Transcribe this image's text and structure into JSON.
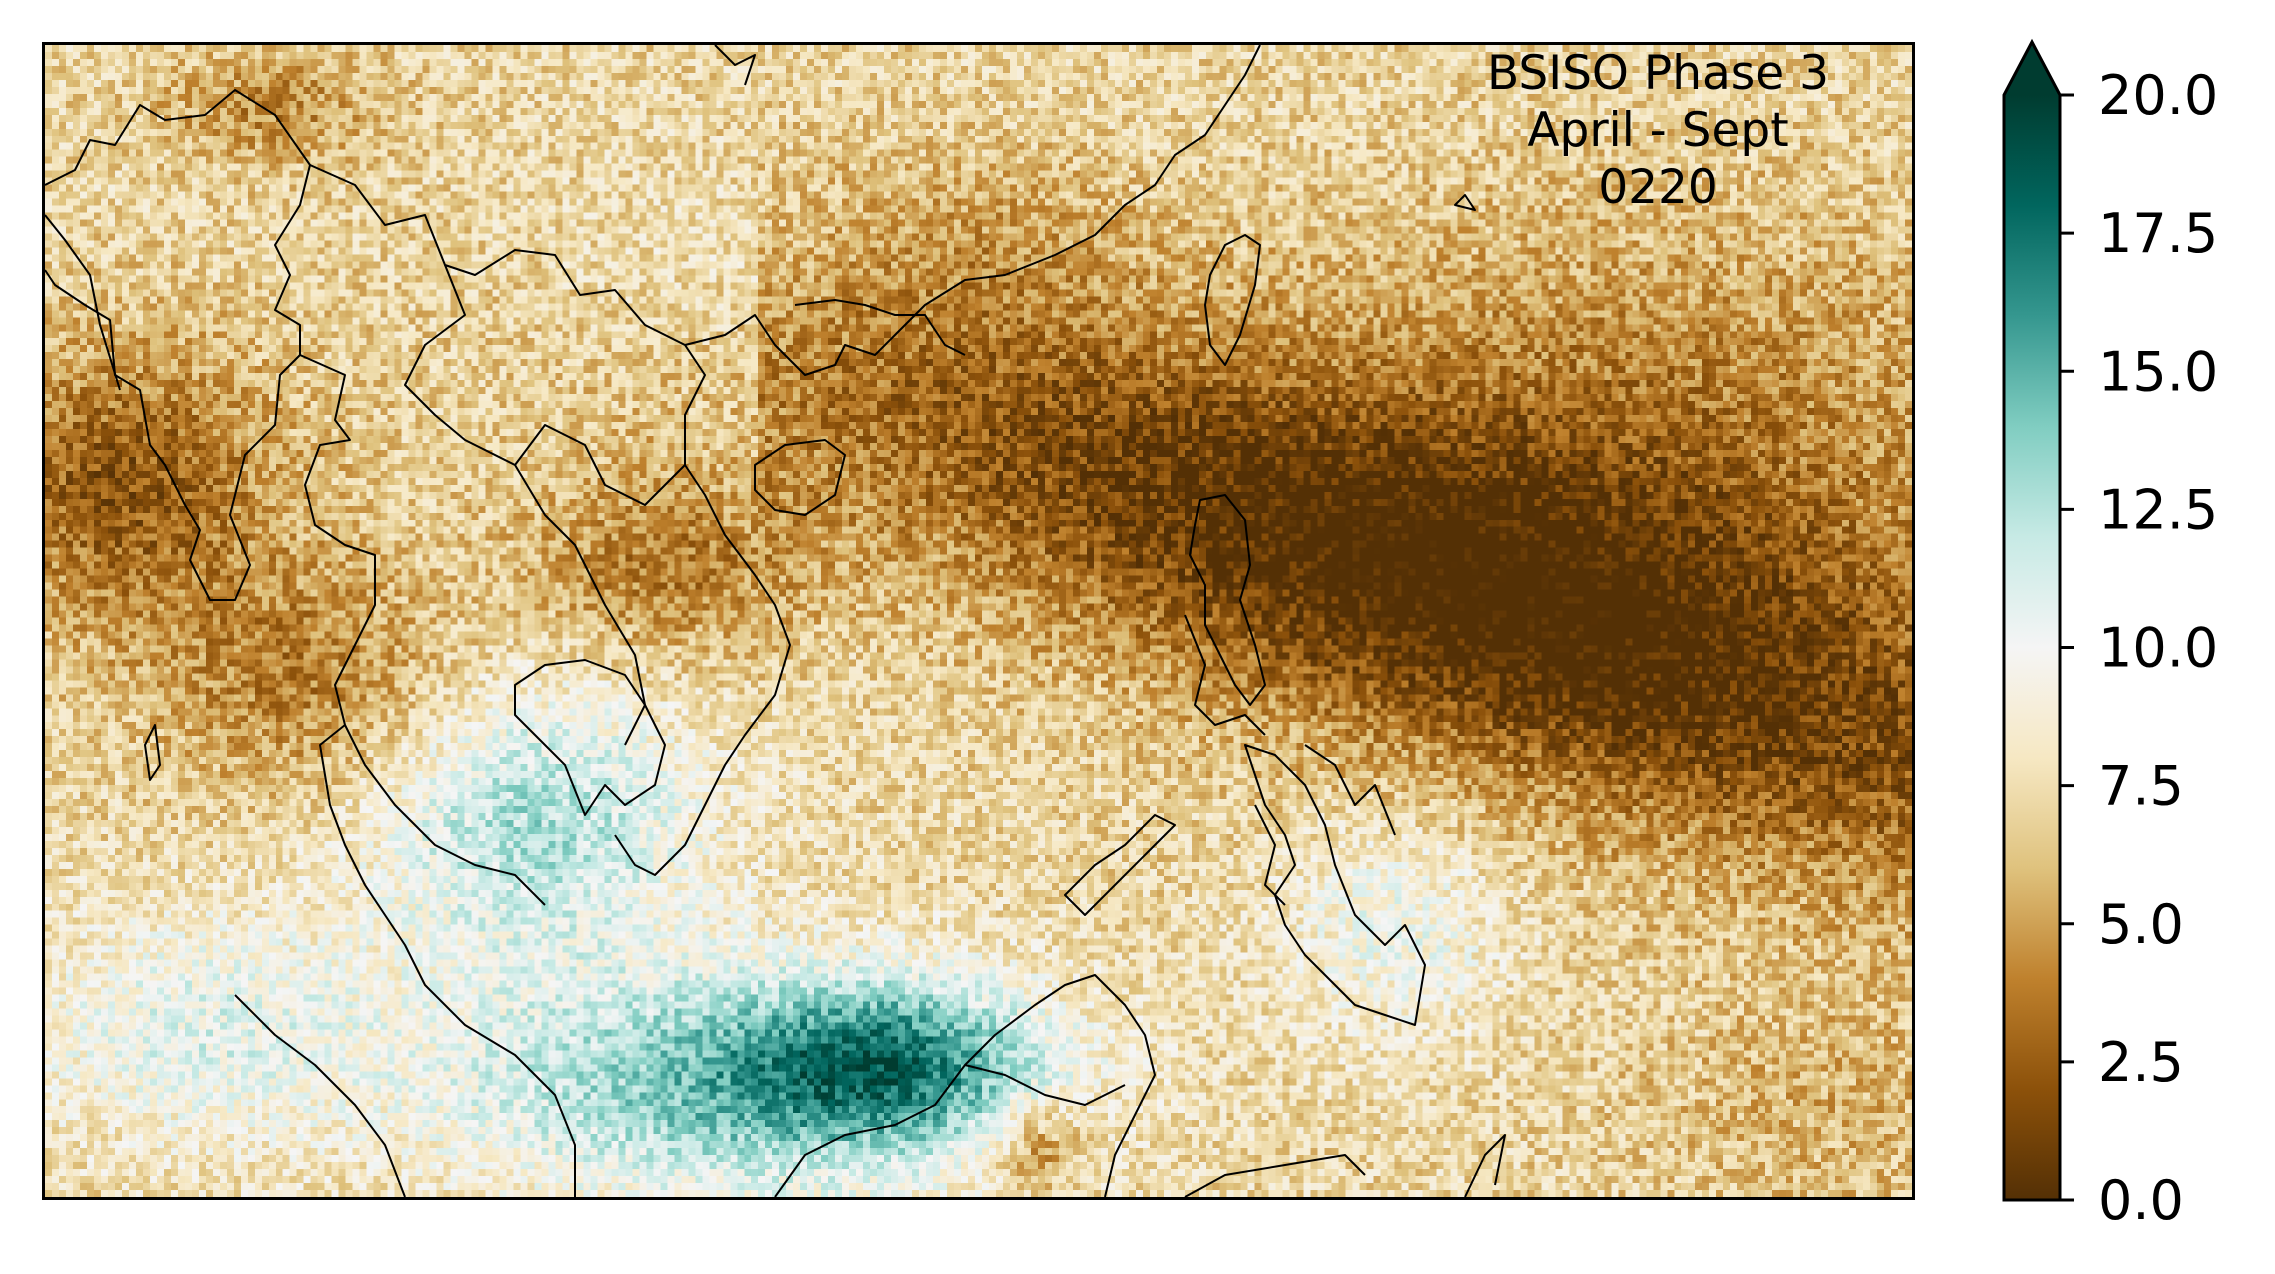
{
  "title": {
    "line1": "BSISO Phase 3",
    "line2": "April - Sept",
    "line3": "0220"
  },
  "colorbar": {
    "min": 0.0,
    "max": 20.0,
    "extend": "max",
    "ticks": [
      "0.0",
      "2.5",
      "5.0",
      "7.5",
      "10.0",
      "12.5",
      "15.0",
      "17.5",
      "20.0"
    ],
    "colormap": "BrBG",
    "colors": [
      "#543005",
      "#8c510a",
      "#bf812d",
      "#dfc27d",
      "#f6e8c3",
      "#f5f5f5",
      "#c7eae5",
      "#80cdc1",
      "#35978f",
      "#01665e",
      "#003c30"
    ]
  },
  "map": {
    "region": "Southeast Asia / Western Pacific",
    "features": [
      "coastlines",
      "country-borders"
    ],
    "field": "gridded rainfall-like values, dry (brown) band from South China Sea to western Pacific, wet (teal) over Gulf of Thailand, Borneo and southern South China Sea"
  }
}
